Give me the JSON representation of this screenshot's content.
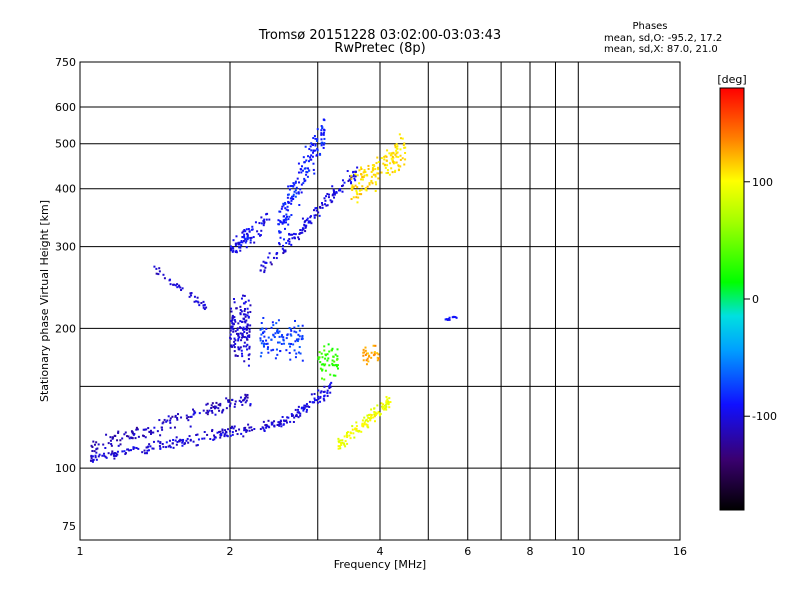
{
  "title_line1": "Tromsø 20151228 03:02:00-03:03:43",
  "title_line2": "RwPretec (8p)",
  "phase_box": {
    "title": "Phases",
    "line_o": "mean, sd,O: -95.2, 17.2",
    "line_x": "mean, sd,X:  87.0, 21.0"
  },
  "chart_data": {
    "type": "scatter",
    "xlabel": "Frequency [MHz]",
    "ylabel": "Stationary phase Virtual Height [km]",
    "x_scale": "log",
    "y_scale": "log",
    "xlim": [
      1,
      16
    ],
    "ylim": [
      70,
      750
    ],
    "x_ticks": [
      1,
      2,
      4,
      6,
      8,
      10,
      16
    ],
    "x_minor_ticks": [
      3,
      5,
      7,
      9
    ],
    "y_ticks": [
      75,
      100,
      200,
      300,
      400,
      500,
      600,
      750
    ],
    "y_minor_ticks": [
      150
    ],
    "grid": true,
    "colorbar": {
      "label": "[deg]",
      "range": [
        -180,
        180
      ],
      "ticks": [
        100,
        0,
        -100
      ]
    },
    "point_clusters": [
      {
        "x_range": [
          1.05,
          2.6
        ],
        "y_center": 115,
        "y_spread": 0.04,
        "phase": -105,
        "n": 200,
        "slope": 0.18
      },
      {
        "x_range": [
          1.05,
          2.2
        ],
        "y_center": 125,
        "y_spread": 0.06,
        "phase": -110,
        "n": 160,
        "slope": 0.25
      },
      {
        "x_range": [
          2.5,
          3.2
        ],
        "y_center": 135,
        "y_spread": 0.05,
        "phase": -100,
        "n": 80,
        "slope": 0.2
      },
      {
        "x_range": [
          2.0,
          2.2
        ],
        "y_center": 200,
        "y_spread": 0.22,
        "phase": -105,
        "n": 140,
        "slope": 0
      },
      {
        "x_range": [
          2.3,
          2.8
        ],
        "y_center": 190,
        "y_spread": 0.15,
        "phase": -75,
        "n": 100,
        "slope": 0
      },
      {
        "x_range": [
          3.0,
          3.3
        ],
        "y_center": 170,
        "y_spread": 0.14,
        "phase": 30,
        "n": 50,
        "slope": 0
      },
      {
        "x_range": [
          3.3,
          4.2
        ],
        "y_center": 125,
        "y_spread": 0.05,
        "phase": 95,
        "n": 110,
        "slope": 0.22
      },
      {
        "x_range": [
          3.7,
          4.0
        ],
        "y_center": 175,
        "y_spread": 0.06,
        "phase": 130,
        "n": 30,
        "slope": 0
      },
      {
        "x_range": [
          1.4,
          1.8
        ],
        "y_center": 245,
        "y_spread": 0.03,
        "phase": -105,
        "n": 40,
        "slope": -0.2
      },
      {
        "x_range": [
          2.0,
          2.4
        ],
        "y_center": 320,
        "y_spread": 0.07,
        "phase": -95,
        "n": 80,
        "slope": 0.15
      },
      {
        "x_range": [
          2.3,
          3.6
        ],
        "y_center": 340,
        "y_spread": 0.06,
        "phase": -100,
        "n": 140,
        "slope": 0.5
      },
      {
        "x_range": [
          2.5,
          3.1
        ],
        "y_center": 420,
        "y_spread": 0.14,
        "phase": -85,
        "n": 160,
        "slope": 0.5
      },
      {
        "x_range": [
          3.5,
          4.5
        ],
        "y_center": 440,
        "y_spread": 0.12,
        "phase": 110,
        "n": 150,
        "slope": 0.2
      },
      {
        "x_range": [
          5.4,
          5.7
        ],
        "y_center": 210,
        "y_spread": 0.02,
        "phase": -90,
        "n": 12,
        "slope": 0
      }
    ]
  }
}
